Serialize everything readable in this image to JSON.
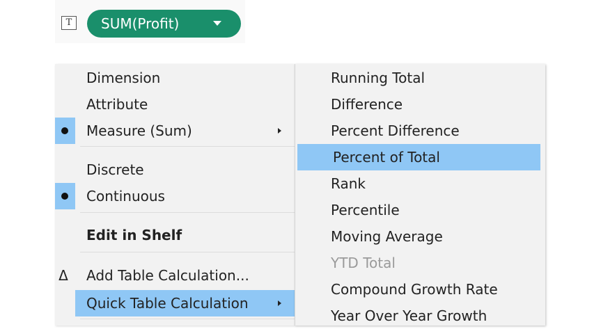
{
  "shelf": {
    "mark_icon": "text-mark-icon",
    "mark_glyph": "T",
    "pill_label": "SUM(Profit)",
    "pill_color": "#1a8f6b"
  },
  "menu": {
    "items": {
      "dimension": "Dimension",
      "attribute": "Attribute",
      "measure_sum": "Measure (Sum)",
      "discrete": "Discrete",
      "continuous": "Continuous",
      "edit_in_shelf": "Edit in Shelf",
      "add_table_calc": "Add Table Calculation...",
      "quick_table_calc": "Quick Table Calculation"
    },
    "checked": [
      "Measure (Sum)",
      "Continuous"
    ],
    "delta_glyph": "Δ",
    "highlight_color": "#8fc7f5"
  },
  "submenu": {
    "items": [
      "Running Total",
      "Difference",
      "Percent Difference",
      "Percent of Total",
      "Rank",
      "Percentile",
      "Moving Average",
      "YTD Total",
      "Compound Growth Rate",
      "Year Over Year Growth"
    ],
    "highlighted": "Percent of Total",
    "disabled": [
      "YTD Total"
    ]
  }
}
